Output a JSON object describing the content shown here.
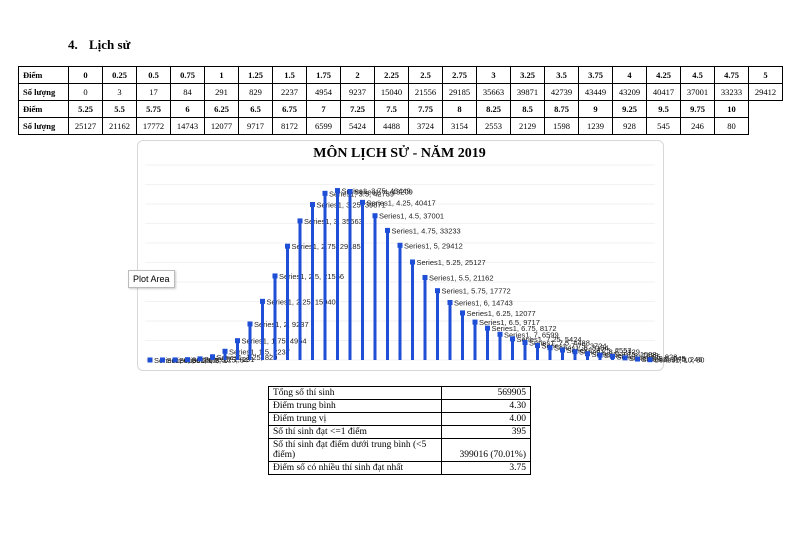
{
  "section": {
    "number": "4.",
    "title": "Lịch sử"
  },
  "score_table": {
    "row_label_score": "Điểm",
    "row_label_count": "Số lượng",
    "row1_scores": [
      "0",
      "0.25",
      "0.5",
      "0.75",
      "1",
      "1.25",
      "1.5",
      "1.75",
      "2",
      "2.25",
      "2.5",
      "2.75",
      "3",
      "3.25",
      "3.5",
      "3.75",
      "4",
      "4.25",
      "4.5",
      "4.75",
      "5"
    ],
    "row1_counts": [
      "0",
      "3",
      "17",
      "84",
      "291",
      "829",
      "2237",
      "4954",
      "9237",
      "15040",
      "21556",
      "29185",
      "35663",
      "39871",
      "42739",
      "43449",
      "43209",
      "40417",
      "37001",
      "33233",
      "29412"
    ],
    "row2_scores": [
      "5.25",
      "5.5",
      "5.75",
      "6",
      "6.25",
      "6.5",
      "6.75",
      "7",
      "7.25",
      "7.5",
      "7.75",
      "8",
      "8.25",
      "8.5",
      "8.75",
      "9",
      "9.25",
      "9.5",
      "9.75",
      "10"
    ],
    "row2_counts": [
      "25127",
      "21162",
      "17772",
      "14743",
      "12077",
      "9717",
      "8172",
      "6599",
      "5424",
      "4488",
      "3724",
      "3154",
      "2553",
      "2129",
      "1598",
      "1239",
      "928",
      "545",
      "246",
      "80"
    ]
  },
  "tooltip": "Plot Area",
  "chart_data": {
    "type": "bar",
    "title": "MÔN LỊCH SỬ - NĂM 2019",
    "series": [
      {
        "name": "Series1",
        "x": [
          0,
          0.25,
          0.5,
          0.75,
          1,
          1.25,
          1.5,
          1.75,
          2,
          2.25,
          2.5,
          2.75,
          3,
          3.25,
          3.5,
          3.75,
          4,
          4.25,
          4.5,
          4.75,
          5,
          5.25,
          5.5,
          5.75,
          6,
          6.25,
          6.5,
          6.75,
          7,
          7.25,
          7.5,
          7.75,
          8,
          8.25,
          8.5,
          8.75,
          9,
          9.25,
          9.5,
          9.75,
          10
        ],
        "values": [
          0,
          3,
          17,
          84,
          291,
          829,
          2237,
          4954,
          9237,
          15040,
          21556,
          29185,
          35663,
          39871,
          42739,
          43449,
          43209,
          40417,
          37001,
          33233,
          29412,
          25127,
          21162,
          17772,
          14743,
          12077,
          9717,
          8172,
          6599,
          5424,
          4488,
          3724,
          3154,
          2553,
          2129,
          1598,
          1239,
          928,
          545,
          246,
          80
        ]
      }
    ],
    "ylim": [
      0,
      50000
    ],
    "grid": true,
    "color": "#1f4fd6",
    "data_labels": true
  },
  "stats": [
    {
      "label": "Tổng số thí sinh",
      "value": "569905"
    },
    {
      "label": "Điểm trung bình",
      "value": "4.30"
    },
    {
      "label": "Điểm trung vị",
      "value": "4.00"
    },
    {
      "label": "Số thí sinh đạt <=1 điểm",
      "value": "395"
    },
    {
      "label": "Số thí sinh đạt điểm dưới trung bình (<5 điểm)",
      "value": "399016 (70.01%)"
    },
    {
      "label": "Điểm số có nhiều thí sinh đạt nhất",
      "value": "3.75"
    }
  ]
}
